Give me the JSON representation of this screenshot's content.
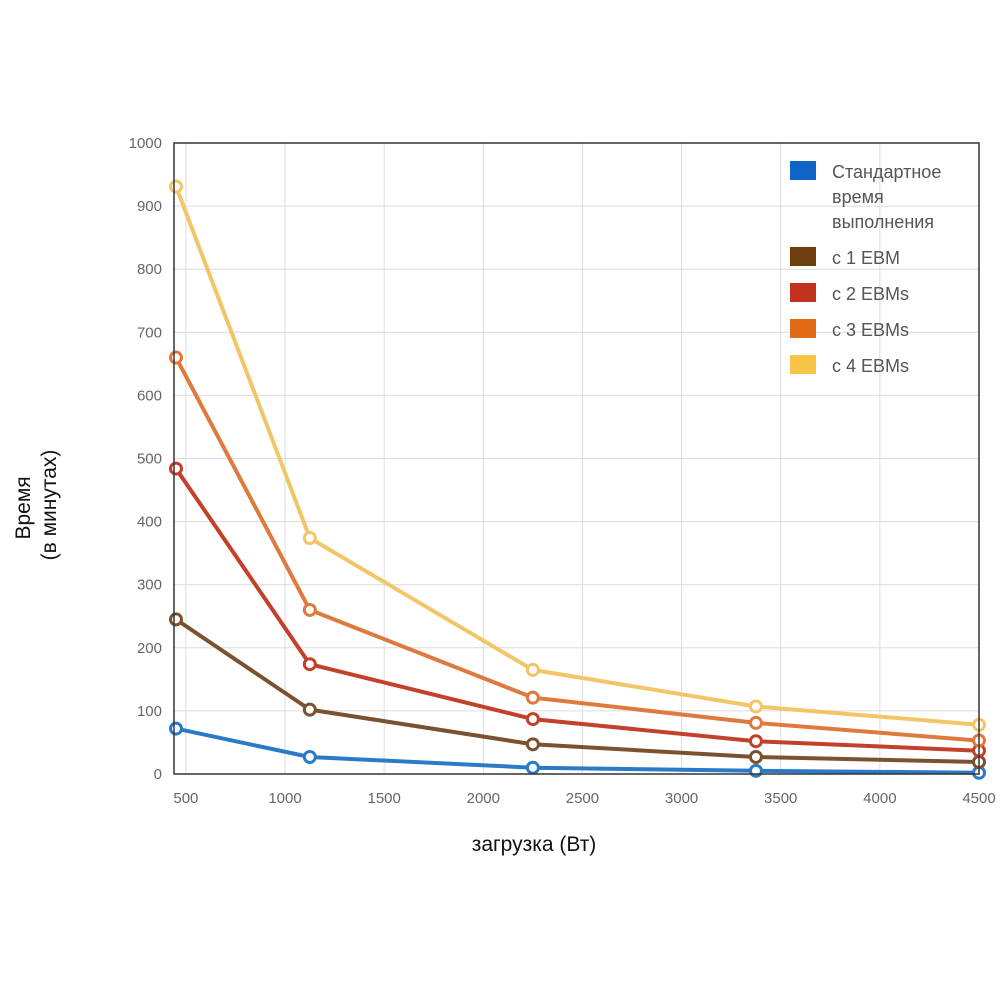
{
  "chart_data": {
    "type": "line",
    "xlabel": "загрузка (Вт)",
    "ylabel_lines": [
      "Время",
      "(в минутах)"
    ],
    "xlim": [
      440,
      4500
    ],
    "ylim": [
      0,
      1000
    ],
    "x_ticks": [
      500,
      1000,
      1500,
      2000,
      2500,
      3000,
      3500,
      4000,
      4500
    ],
    "y_ticks": [
      0,
      100,
      200,
      300,
      400,
      500,
      600,
      700,
      800,
      900,
      1000
    ],
    "grid": true,
    "legend_position": "top-right",
    "x": [
      450,
      1125,
      2250,
      3375,
      4500
    ],
    "series": [
      {
        "name_lines": [
          "Стандартное",
          "время",
          "выполнения"
        ],
        "color": "#2a7ac8",
        "legend_color": "#0e63c4",
        "values": [
          72,
          27,
          10,
          5,
          2
        ]
      },
      {
        "name_lines": [
          "с 1 EBM"
        ],
        "color": "#7a5230",
        "legend_color": "#6b3e0c",
        "values": [
          245,
          102,
          47,
          27,
          19
        ]
      },
      {
        "name_lines": [
          "с 2 EBMs"
        ],
        "color": "#c3402a",
        "legend_color": "#c0321d",
        "values": [
          484,
          174,
          87,
          52,
          37
        ]
      },
      {
        "name_lines": [
          "с 3 EBMs"
        ],
        "color": "#de7a3e",
        "legend_color": "#e06a16",
        "values": [
          660,
          260,
          121,
          81,
          53
        ]
      },
      {
        "name_lines": [
          "с 4 EBMs"
        ],
        "color": "#f2c667",
        "legend_color": "#f6c447",
        "values": [
          931,
          374,
          165,
          107,
          78
        ]
      }
    ]
  }
}
